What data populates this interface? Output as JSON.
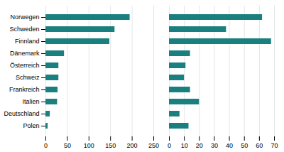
{
  "chart_data": [
    {
      "type": "bar",
      "orientation": "horizontal",
      "categories": [
        "Norwegen",
        "Schweden",
        "Finnland",
        "Dänemark",
        "Österreich",
        "Schweiz",
        "Frankreich",
        "Italien",
        "Deutschland",
        "Polen"
      ],
      "values": [
        195,
        160,
        148,
        43,
        30,
        30,
        28,
        27,
        10,
        5
      ],
      "color": "#1a7f7f",
      "xlim": [
        0,
        250
      ],
      "xticks": [
        0,
        50,
        100,
        150,
        200,
        250
      ],
      "grid": true
    },
    {
      "type": "bar",
      "orientation": "horizontal",
      "categories": [
        "Norwegen",
        "Schweden",
        "Finnland",
        "Dänemark",
        "Österreich",
        "Schweiz",
        "Frankreich",
        "Italien",
        "Deutschland",
        "Polen"
      ],
      "values": [
        62,
        38,
        68,
        14,
        11,
        10,
        14,
        20,
        7,
        13
      ],
      "color": "#1a7f7f",
      "xlim": [
        0,
        70
      ],
      "xticks": [
        0,
        10,
        20,
        30,
        40,
        50,
        60,
        70
      ],
      "grid": true,
      "tick_labels": "x"
    }
  ]
}
